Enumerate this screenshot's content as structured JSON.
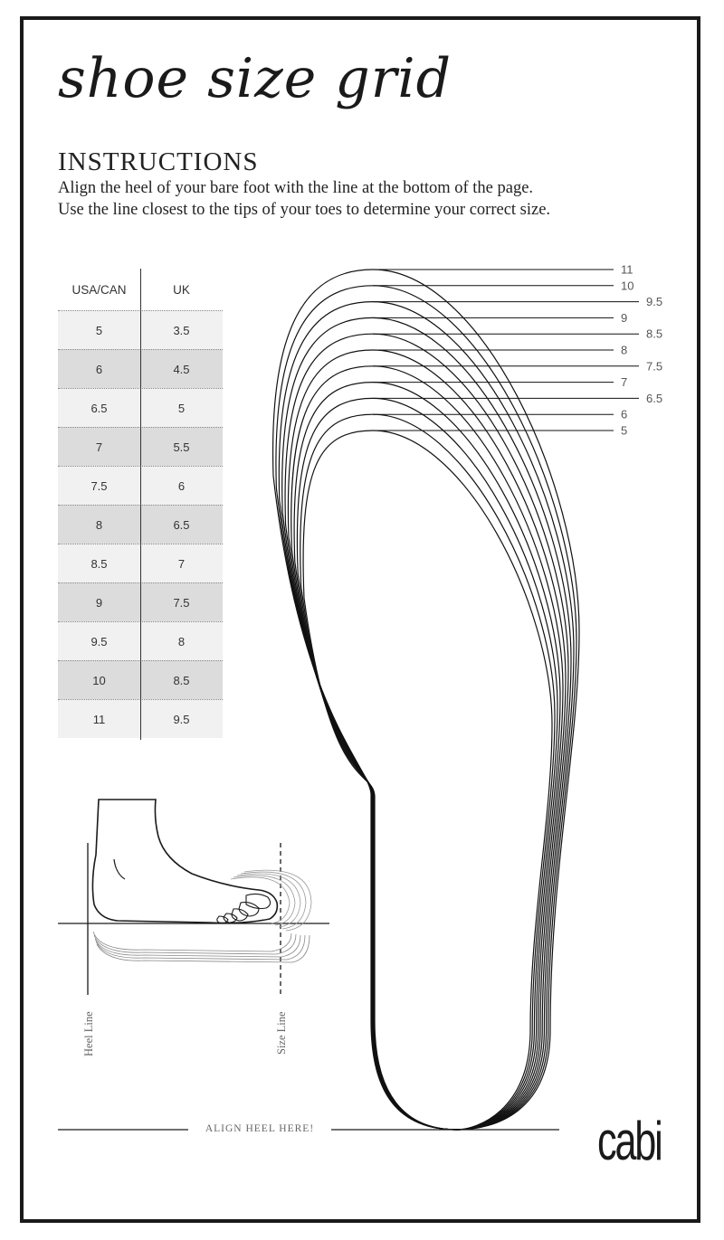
{
  "title": "shoe size grid",
  "instructions": {
    "heading": "INSTRUCTIONS",
    "line1": "Align the heel of your bare foot with the line at the bottom of the page.",
    "line2": "Use the line closest to the tips of your toes to determine your correct size."
  },
  "size_table": {
    "headers": [
      "USA/CAN",
      "UK"
    ],
    "rows": [
      {
        "usa": "5",
        "uk": "3.5"
      },
      {
        "usa": "6",
        "uk": "4.5"
      },
      {
        "usa": "6.5",
        "uk": "5"
      },
      {
        "usa": "7",
        "uk": "5.5"
      },
      {
        "usa": "7.5",
        "uk": "6"
      },
      {
        "usa": "8",
        "uk": "6.5"
      },
      {
        "usa": "8.5",
        "uk": "7"
      },
      {
        "usa": "9",
        "uk": "7.5"
      },
      {
        "usa": "9.5",
        "uk": "8"
      },
      {
        "usa": "10",
        "uk": "8.5"
      },
      {
        "usa": "11",
        "uk": "9.5"
      }
    ]
  },
  "outline_labels": [
    "11",
    "10",
    "9.5",
    "9",
    "8.5",
    "8",
    "7.5",
    "7",
    "6.5",
    "6",
    "5"
  ],
  "diagram": {
    "heel_line": "Heel Line",
    "size_line": "Size Line"
  },
  "align_text": "ALIGN HEEL HERE!",
  "brand": "cabi"
}
